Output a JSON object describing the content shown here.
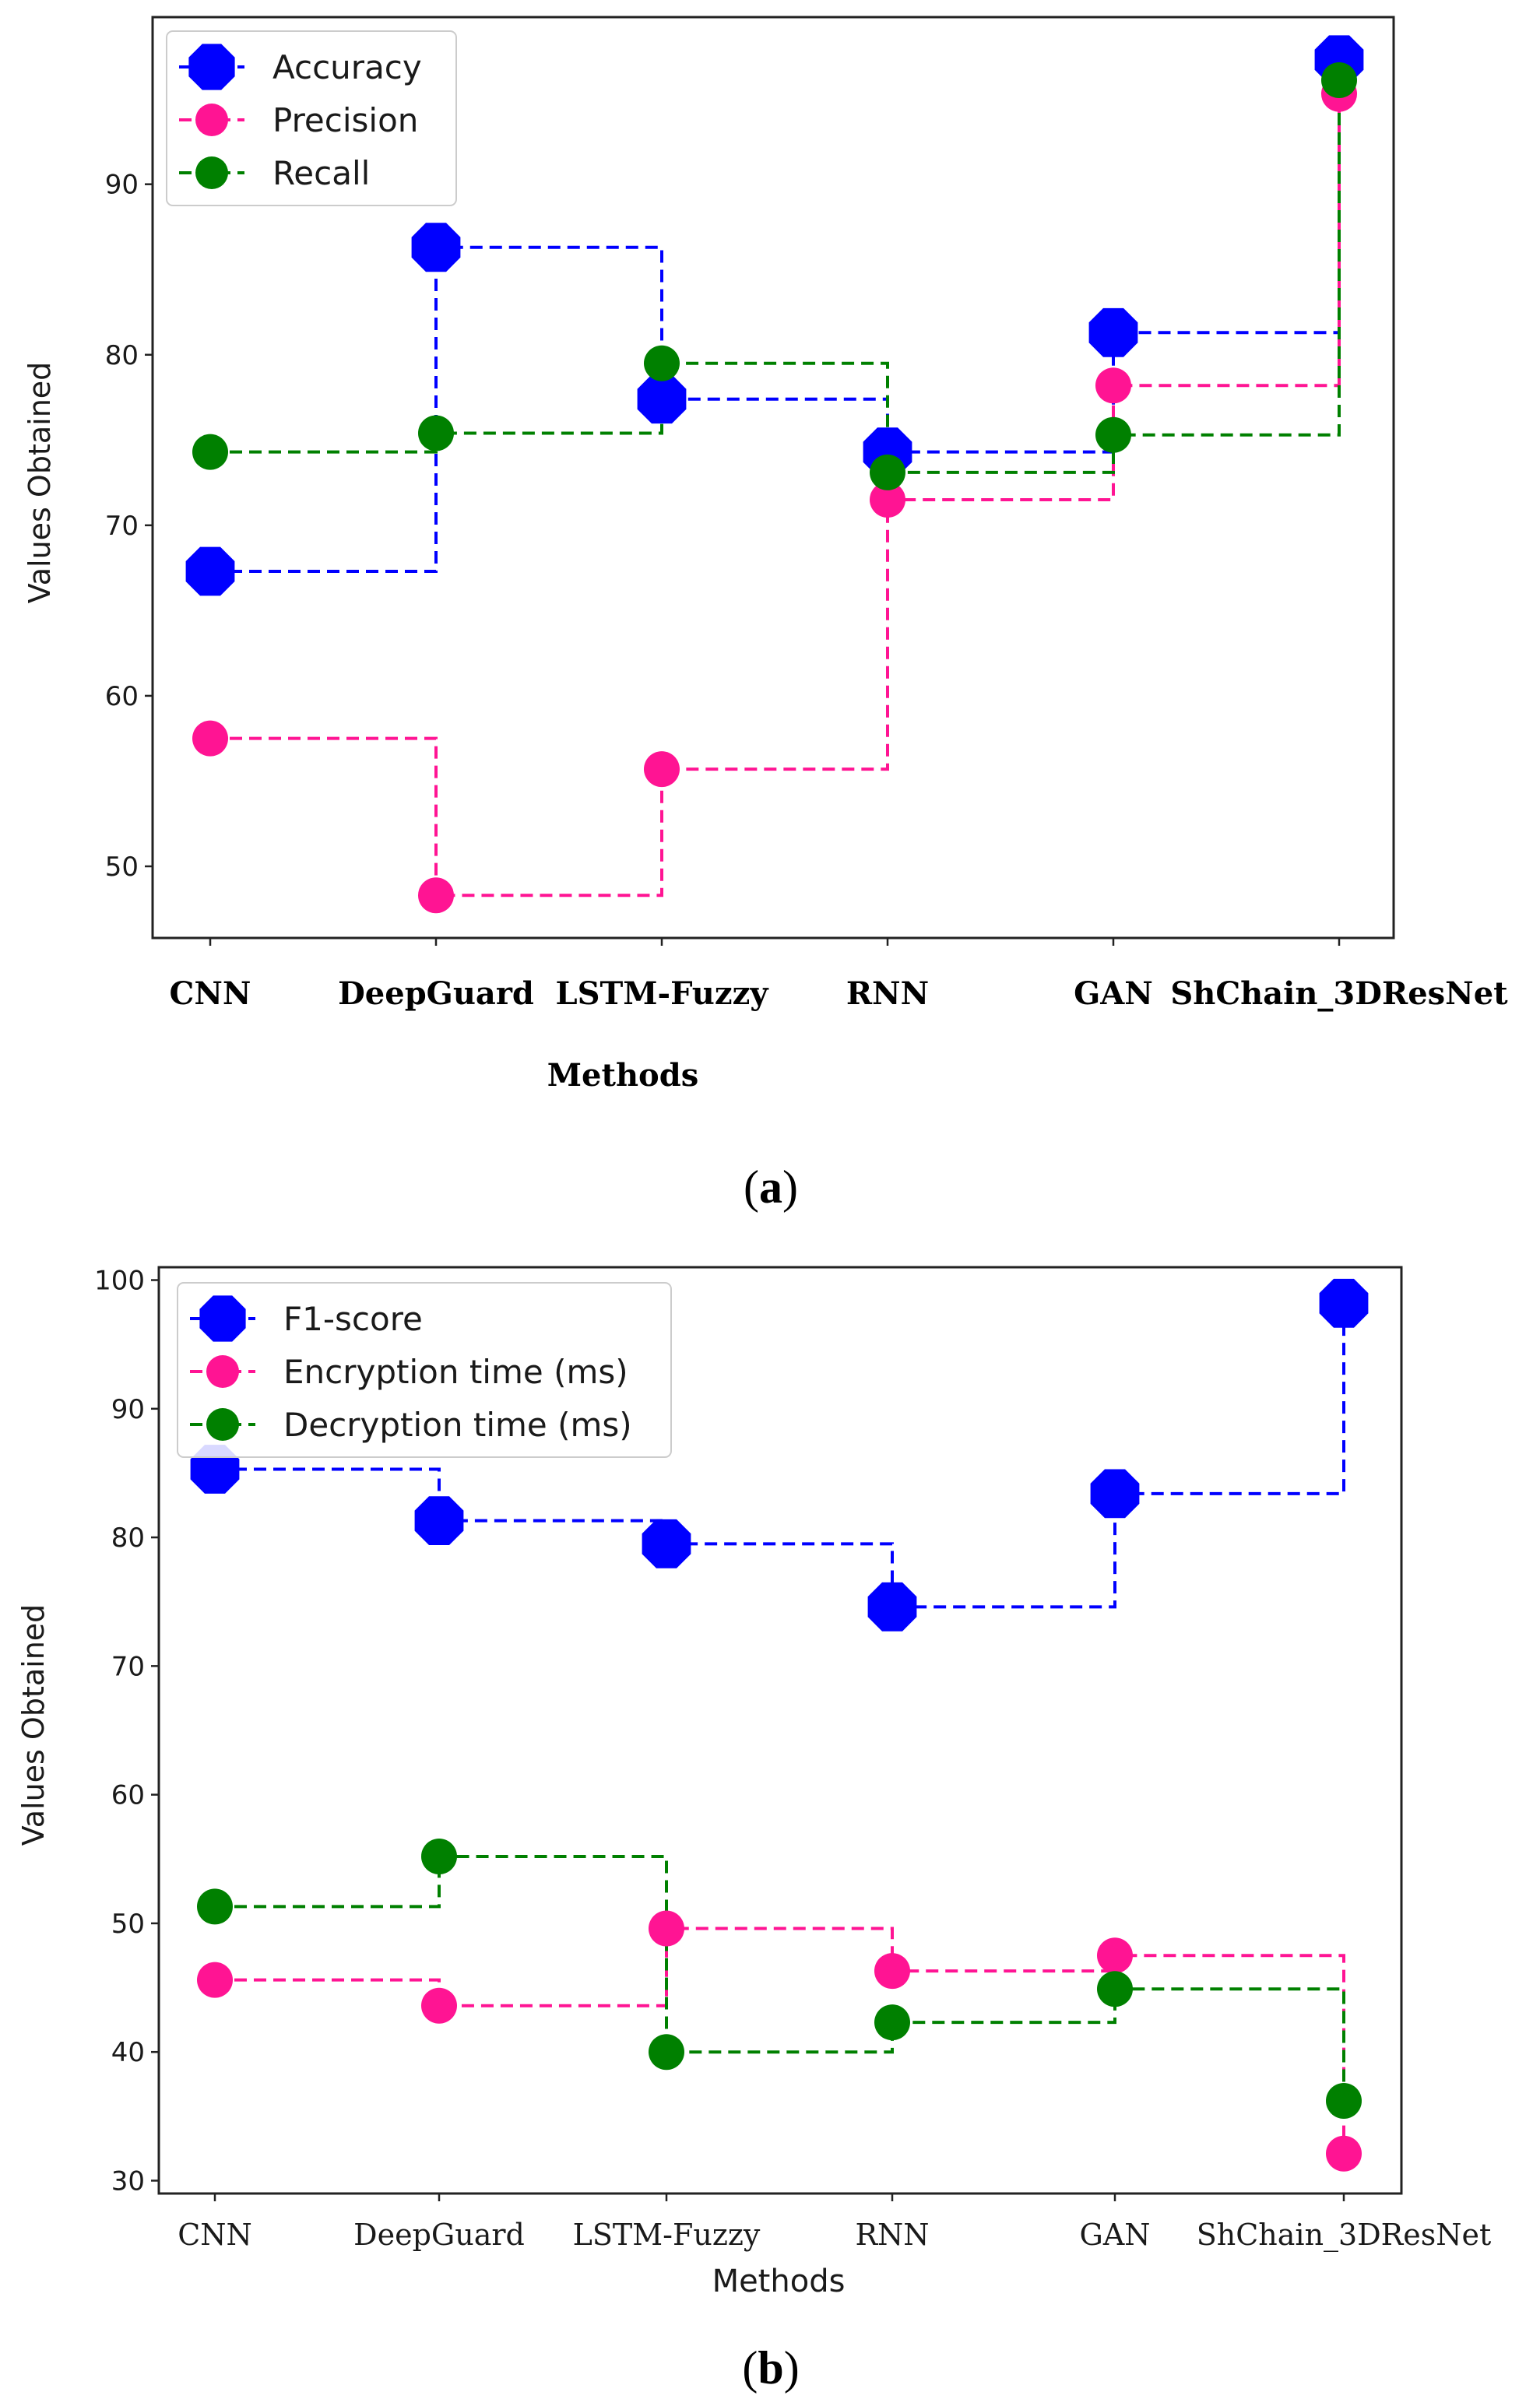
{
  "chart_data": [
    {
      "type": "line",
      "step": "post",
      "panel_label": "(a)",
      "panel_letter": "a",
      "xlabel": "Methods",
      "ylabel": "Values Obtained",
      "categories": [
        "CNN",
        "DeepGuard",
        "LSTM-Fuzzy",
        "RNN",
        "GAN",
        "ShChain_3DResNet"
      ],
      "ylim": [
        45.8,
        99.8
      ],
      "yticks": [
        50,
        60,
        70,
        80,
        90
      ],
      "legend_position": "top-left",
      "series": [
        {
          "name": "Accuracy",
          "marker": "octagon-large",
          "color": "#0000ff",
          "values": [
            67.3,
            86.3,
            77.4,
            74.3,
            81.3,
            97.3
          ]
        },
        {
          "name": "Precision",
          "marker": "circle",
          "color": "#ff1493",
          "values": [
            57.5,
            48.3,
            55.7,
            71.5,
            78.2,
            95.3
          ]
        },
        {
          "name": "Recall",
          "marker": "circle",
          "color": "#008000",
          "values": [
            74.3,
            75.4,
            79.5,
            73.1,
            75.3,
            96.1
          ]
        }
      ]
    },
    {
      "type": "line",
      "step": "post",
      "panel_label": "(b)",
      "panel_letter": "b",
      "xlabel": "Methods",
      "ylabel": "Values Obtained",
      "categories": [
        "CNN",
        "DeepGuard",
        "LSTM-Fuzzy",
        "RNN",
        "GAN",
        "ShChain_3DResNet"
      ],
      "ylim": [
        29,
        101
      ],
      "yticks": [
        30,
        40,
        50,
        60,
        70,
        80,
        90,
        100
      ],
      "legend_position": "top-left",
      "series": [
        {
          "name": "F1-score",
          "marker": "octagon-large",
          "color": "#0000ff",
          "values": [
            85.3,
            81.3,
            79.5,
            74.6,
            83.4,
            98.2
          ]
        },
        {
          "name": "Encryption time (ms)",
          "marker": "circle",
          "color": "#ff1493",
          "values": [
            45.6,
            43.6,
            49.6,
            46.3,
            47.5,
            32.1
          ]
        },
        {
          "name": "Decryption time (ms)",
          "marker": "circle",
          "color": "#008000",
          "values": [
            51.3,
            55.2,
            40.0,
            42.3,
            44.9,
            36.2
          ]
        }
      ]
    }
  ]
}
